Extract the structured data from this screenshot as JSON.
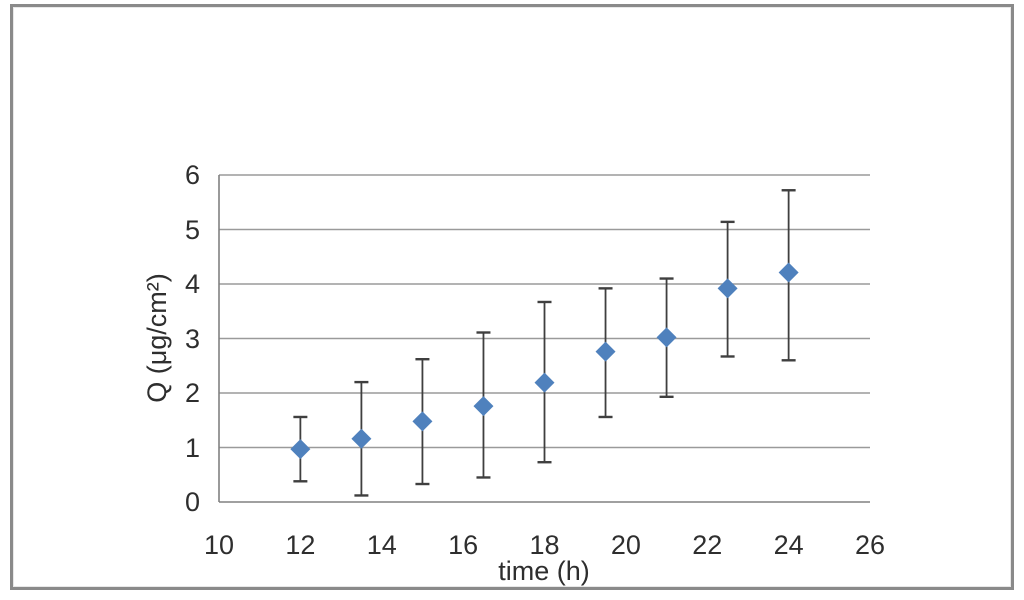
{
  "chart_data": {
    "type": "scatter",
    "title": "",
    "xlabel": "time (h)",
    "ylabel": "Q (μg/cm²)",
    "xlim": [
      10,
      26
    ],
    "ylim": [
      0,
      6
    ],
    "x_ticks": [
      10,
      12,
      14,
      16,
      18,
      20,
      22,
      24,
      26
    ],
    "y_ticks": [
      0,
      1,
      2,
      3,
      4,
      5,
      6
    ],
    "grid": "horizontal-only",
    "legend_position": "none",
    "marker": "diamond",
    "colors": {
      "marker": "#4F81BD",
      "error_bar": "#3f3f3f",
      "gridline": "#9a9a9a",
      "axis_line": "#808080",
      "tick_label": "#2e2e2e",
      "frame_border": "#8a8a8a",
      "background": "#ffffff"
    },
    "series": [
      {
        "name": "Q",
        "points": [
          {
            "x": 12.0,
            "y": 0.97,
            "err_low": 0.38,
            "err_high": 1.56
          },
          {
            "x": 13.5,
            "y": 1.16,
            "err_low": 0.12,
            "err_high": 2.2
          },
          {
            "x": 15.0,
            "y": 1.48,
            "err_low": 0.33,
            "err_high": 2.62
          },
          {
            "x": 16.5,
            "y": 1.76,
            "err_low": 0.45,
            "err_high": 3.11
          },
          {
            "x": 18.0,
            "y": 2.19,
            "err_low": 0.73,
            "err_high": 3.67
          },
          {
            "x": 19.5,
            "y": 2.76,
            "err_low": 1.56,
            "err_high": 3.92
          },
          {
            "x": 21.0,
            "y": 3.02,
            "err_low": 1.93,
            "err_high": 4.1
          },
          {
            "x": 22.5,
            "y": 3.92,
            "err_low": 2.67,
            "err_high": 5.14
          },
          {
            "x": 24.0,
            "y": 4.21,
            "err_low": 2.6,
            "err_high": 5.72
          }
        ]
      }
    ]
  }
}
